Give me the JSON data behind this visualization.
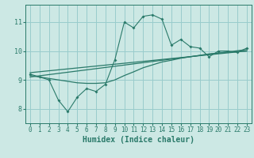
{
  "xlabel": "Humidex (Indice chaleur)",
  "bg_color": "#cce8e4",
  "grid_color": "#99cccc",
  "line_color": "#2a7a6a",
  "xlim": [
    -0.5,
    23.5
  ],
  "ylim": [
    7.5,
    11.6
  ],
  "yticks": [
    8,
    9,
    10,
    11
  ],
  "xticks": [
    0,
    1,
    2,
    3,
    4,
    5,
    6,
    7,
    8,
    9,
    10,
    11,
    12,
    13,
    14,
    15,
    16,
    17,
    18,
    19,
    20,
    21,
    22,
    23
  ],
  "line1_x": [
    0,
    1,
    2,
    3,
    4,
    5,
    6,
    7,
    8,
    9,
    10,
    11,
    12,
    13,
    14,
    15,
    16,
    17,
    18,
    19,
    20,
    21,
    22,
    23
  ],
  "line1_y": [
    9.2,
    9.1,
    9.0,
    8.3,
    7.9,
    8.4,
    8.7,
    8.6,
    8.85,
    9.7,
    11.0,
    10.8,
    11.2,
    11.25,
    11.1,
    10.2,
    10.4,
    10.15,
    10.1,
    9.8,
    10.0,
    10.0,
    9.95,
    10.1
  ],
  "line2_x": [
    0,
    1,
    2,
    3,
    4,
    5,
    6,
    7,
    8,
    9,
    10,
    11,
    12,
    13,
    14,
    15,
    16,
    17,
    18,
    19,
    20,
    21,
    22,
    23
  ],
  "line2_y": [
    9.15,
    9.1,
    9.05,
    9.0,
    8.95,
    8.9,
    8.88,
    8.88,
    8.9,
    9.0,
    9.15,
    9.28,
    9.42,
    9.52,
    9.62,
    9.68,
    9.75,
    9.8,
    9.85,
    9.9,
    9.93,
    9.96,
    9.98,
    10.0
  ],
  "line3_x": [
    0,
    23
  ],
  "line3_y": [
    9.1,
    10.05
  ],
  "line4_x": [
    0,
    23
  ],
  "line4_y": [
    9.25,
    10.0
  ],
  "xlabel_fontsize": 7,
  "tick_fontsize": 5.5
}
